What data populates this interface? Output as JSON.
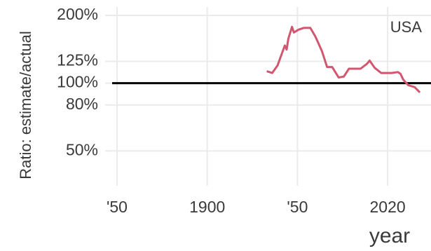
{
  "chart_data": {
    "type": "line",
    "y_label": "Ratio: estimate/actual",
    "x_label": "year",
    "annotation": "USA",
    "x": [
      1933,
      1936,
      1939,
      1943,
      1944,
      1945,
      1947,
      1948,
      1951,
      1955,
      1960,
      1964,
      1969,
      1973,
      1977,
      1982,
      1986,
      1990,
      1995,
      1999,
      2004,
      2006,
      2010,
      2015,
      2019,
      2023,
      2028,
      2030,
      2032,
      2036,
      2041,
      2045
    ],
    "series": [
      {
        "name": "USA",
        "color": "#d1566f",
        "values": [
          113,
          111,
          120,
          147,
          141,
          158,
          178,
          168,
          173,
          176,
          176,
          161,
          139,
          118,
          118,
          106,
          107,
          116,
          116,
          116,
          122,
          126,
          117,
          111,
          111,
          111,
          112,
          110,
          104,
          98,
          96,
          91
        ]
      }
    ],
    "reference_line": 100,
    "log_y": true,
    "ylim": [
      35,
      218
    ],
    "yticks": [
      {
        "value": 50,
        "label": "50%"
      },
      {
        "value": 80,
        "label": "80%"
      },
      {
        "value": 100,
        "label": "100%"
      },
      {
        "value": 125,
        "label": "125%"
      },
      {
        "value": 200,
        "label": "200%"
      }
    ],
    "xlim": [
      1843,
      2054
    ],
    "xticks": [
      {
        "value": 1850,
        "label": "'50"
      },
      1900,
      {
        "value": 1950,
        "label": "'50"
      },
      2020
    ],
    "grid": true
  }
}
